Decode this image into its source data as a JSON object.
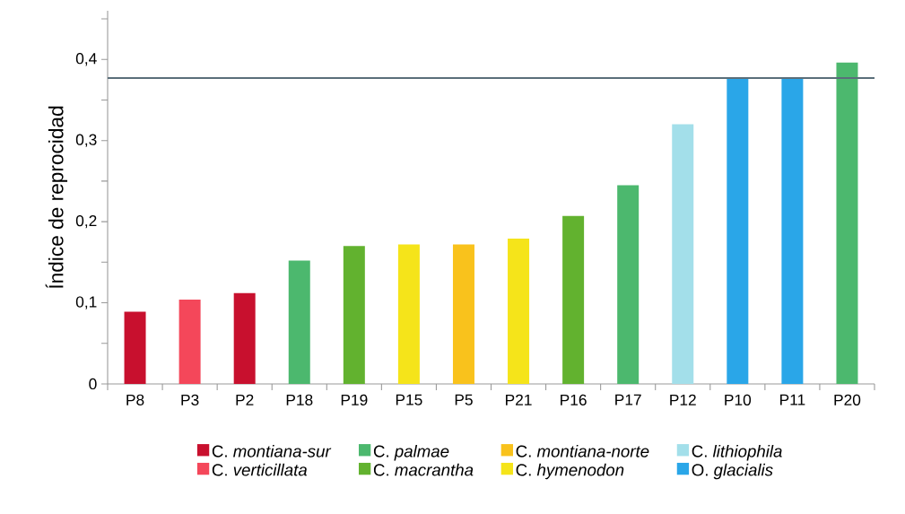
{
  "chart_data": {
    "type": "bar",
    "ylabel": "Índice de reprocidad",
    "categories": [
      "P8",
      "P3",
      "P2",
      "P18",
      "P19",
      "P15",
      "P5",
      "P21",
      "P16",
      "P17",
      "P12",
      "P10",
      "P11",
      "P20"
    ],
    "series": [
      {
        "name": "C. *montiana-sur*",
        "color": "#c8102e",
        "values": [
          0.089,
          null,
          0.112,
          null,
          null,
          null,
          null,
          null,
          null,
          null,
          null,
          null,
          null,
          null
        ]
      },
      {
        "name": "C. *verticillata*",
        "color": "#f4475a",
        "values": [
          null,
          0.104,
          null,
          null,
          null,
          null,
          null,
          null,
          null,
          null,
          null,
          null,
          null,
          null
        ]
      },
      {
        "name": "C. *palmae*",
        "color": "#4cb86e",
        "values": [
          null,
          null,
          null,
          0.152,
          null,
          null,
          null,
          null,
          null,
          0.245,
          null,
          null,
          null,
          0.396
        ]
      },
      {
        "name": "C. *macrantha*",
        "color": "#62b22f",
        "values": [
          null,
          null,
          null,
          null,
          0.17,
          null,
          null,
          null,
          0.207,
          null,
          null,
          null,
          null,
          null
        ]
      },
      {
        "name": "C. *montiana-norte*",
        "color": "#f9c21c",
        "values": [
          null,
          null,
          null,
          null,
          null,
          null,
          0.172,
          null,
          null,
          null,
          null,
          null,
          null,
          null
        ]
      },
      {
        "name": "C. *hymenodon*",
        "color": "#f5e41a",
        "values": [
          null,
          null,
          null,
          null,
          null,
          0.172,
          null,
          0.179,
          null,
          null,
          null,
          null,
          null,
          null
        ]
      },
      {
        "name": "C. *lithiophila*",
        "color": "#a3dfea",
        "values": [
          null,
          null,
          null,
          null,
          null,
          null,
          null,
          null,
          null,
          null,
          0.32,
          null,
          null,
          null
        ]
      },
      {
        "name": "O. *glacialis*",
        "color": "#2aa6e8",
        "values": [
          null,
          null,
          null,
          null,
          null,
          null,
          null,
          null,
          null,
          null,
          null,
          0.377,
          0.377,
          null
        ]
      }
    ],
    "ylim": [
      0,
      0.46
    ],
    "yticks": [
      0,
      {
        "value": 0.05,
        "label": null
      },
      {
        "value": 0.1,
        "label": "0,1"
      },
      {
        "value": 0.15,
        "label": null
      },
      {
        "value": 0.2,
        "label": "0,2"
      },
      {
        "value": 0.25,
        "label": null
      },
      {
        "value": 0.3,
        "label": "0,3"
      },
      {
        "value": 0.35,
        "label": null
      },
      {
        "value": 0.4,
        "label": "0,4"
      },
      {
        "value": 0.45,
        "label": null
      }
    ],
    "ref_lines": [
      {
        "axis": "y",
        "value": 0.377,
        "color": "#5a6e7a"
      }
    ],
    "legend": "bottom"
  }
}
